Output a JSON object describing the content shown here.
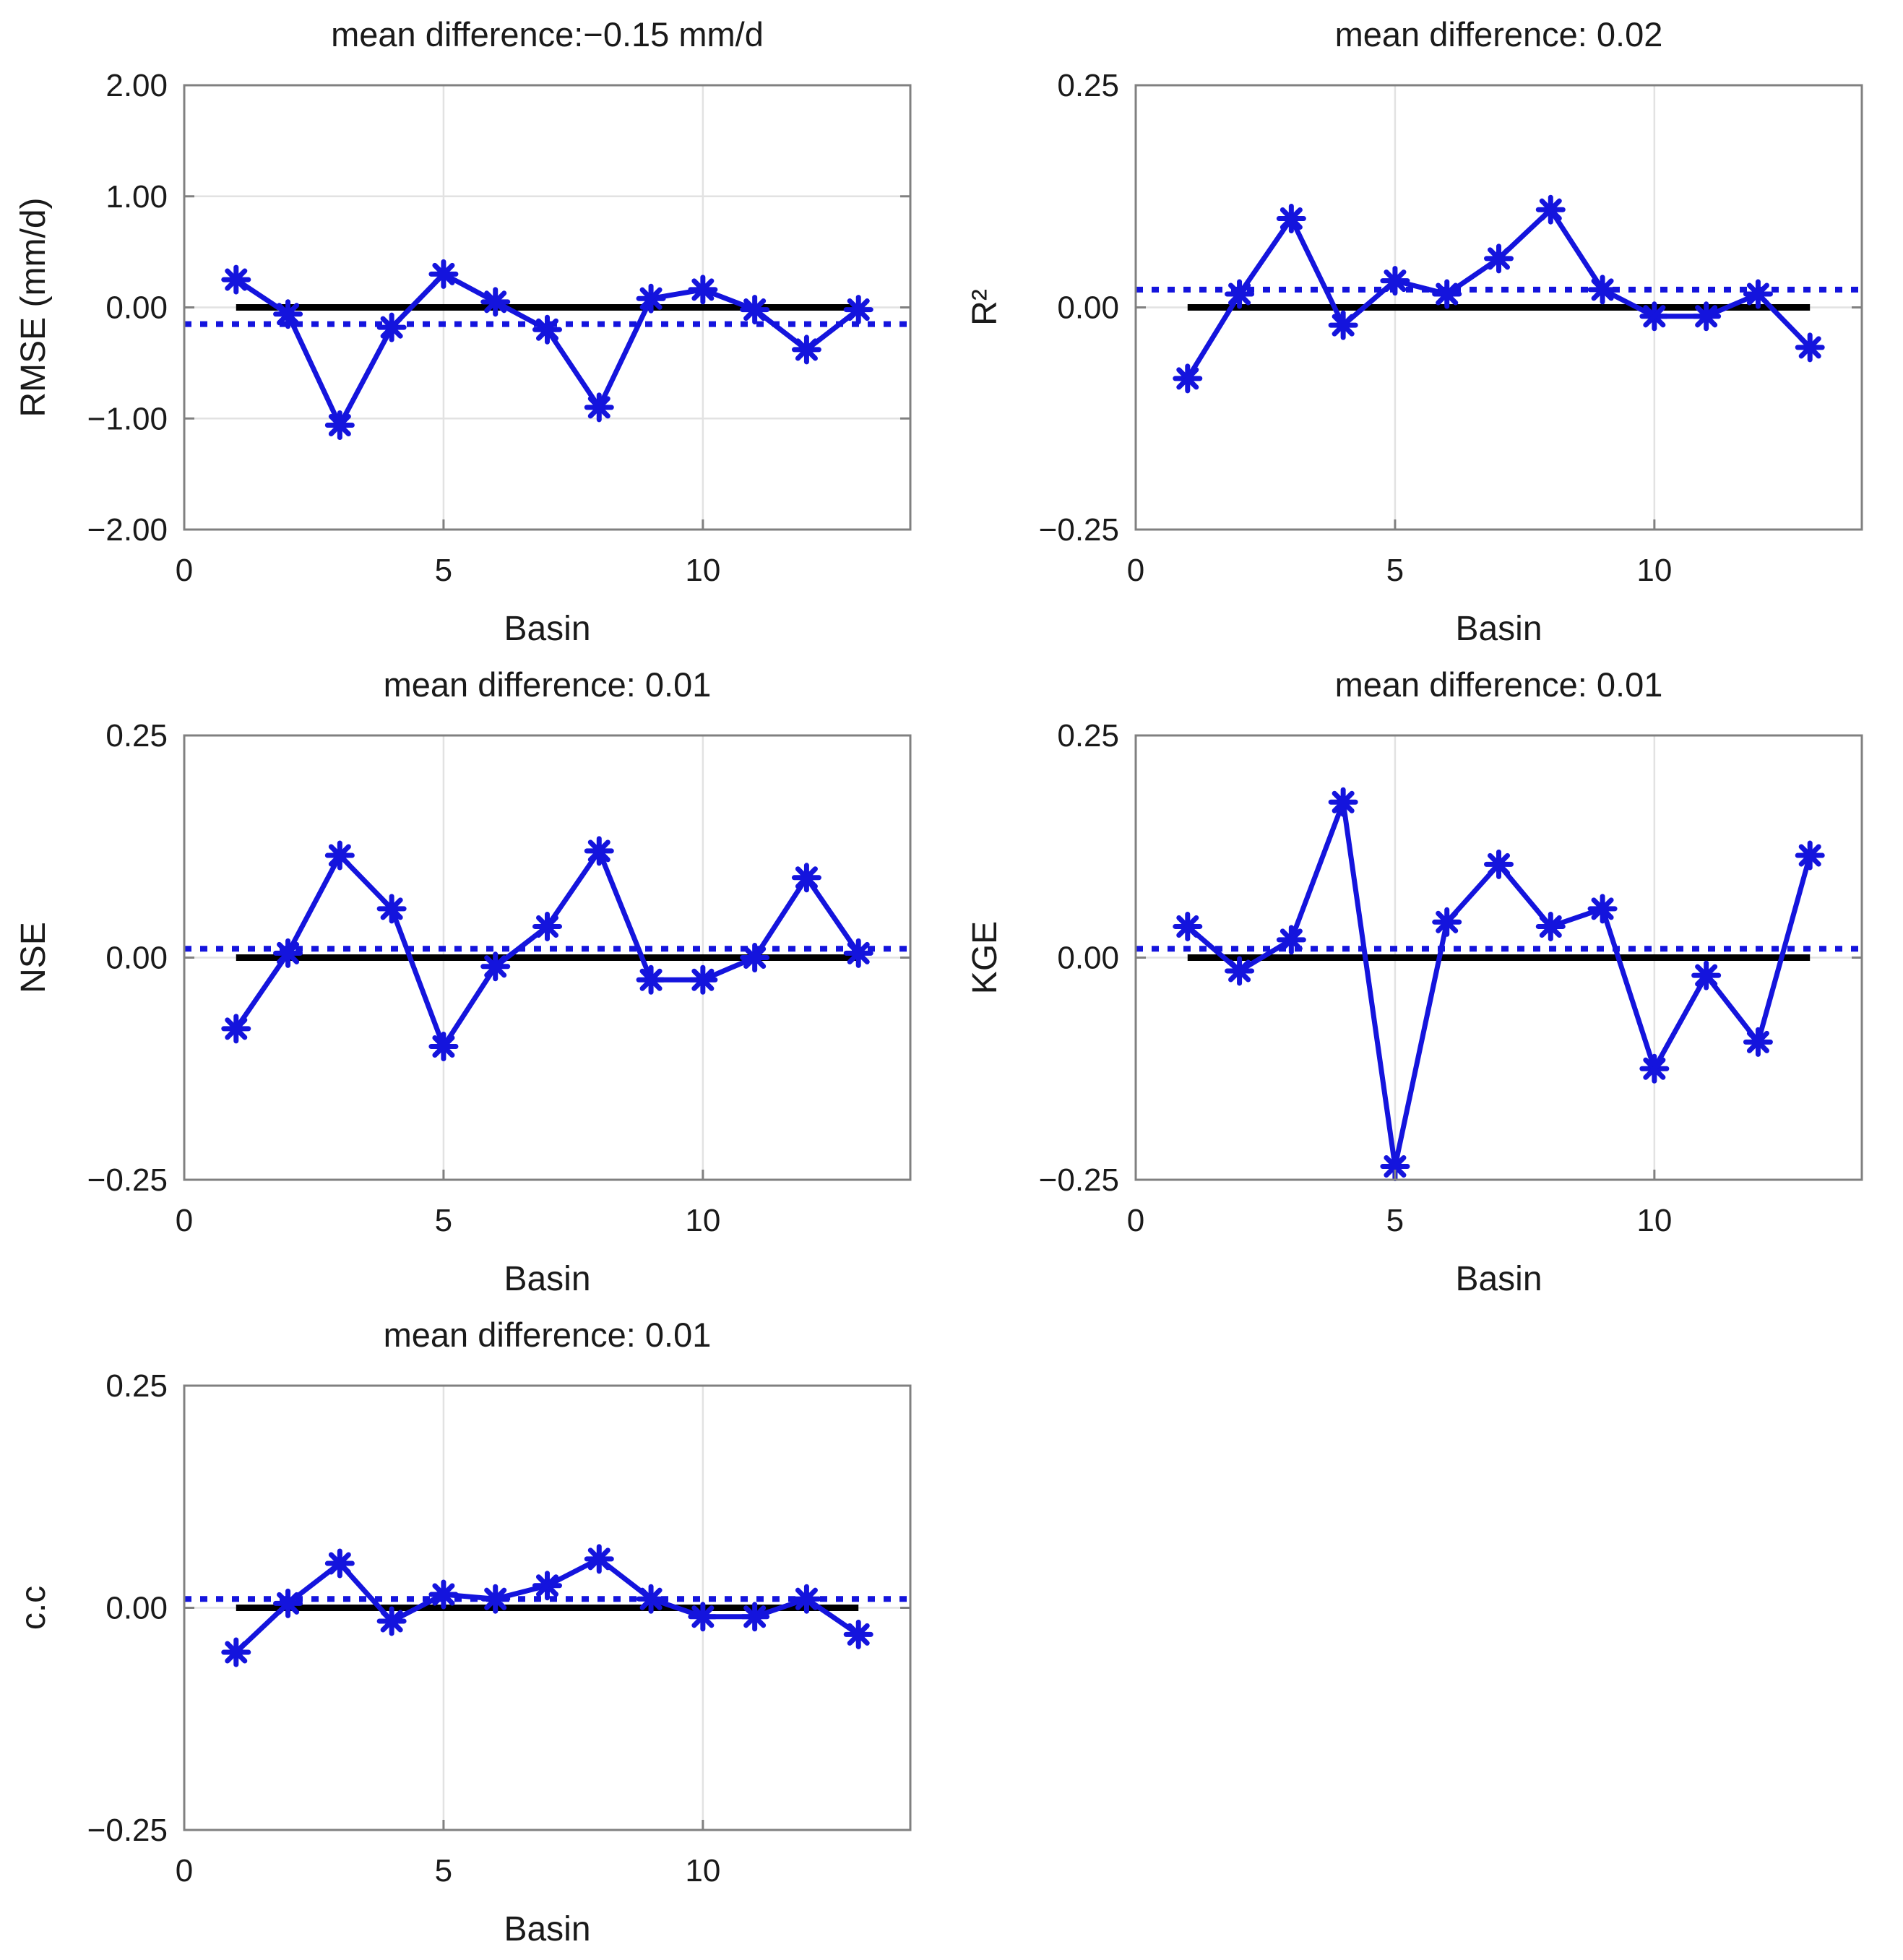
{
  "figure": {
    "background": "#ffffff",
    "colors": {
      "series_blue": "#1414dd",
      "mean_line_blue": "#1414dd",
      "zero_line_black": "#000000",
      "grid_gray": "#e2e2e2",
      "axis_box_gray": "#808080",
      "text_dark": "#1a1a1a"
    },
    "marker_style": "asterisk"
  },
  "chart_data": [
    {
      "type": "line",
      "id": "rmse-difference",
      "title": "mean difference:−0.15 mm/d",
      "ylabel": "RMSE (mm/d)",
      "xlabel": "Basin",
      "x": [
        1,
        2,
        3,
        4,
        5,
        6,
        7,
        8,
        9,
        10,
        11,
        12,
        13
      ],
      "values": [
        0.25,
        -0.06,
        -1.06,
        -0.18,
        0.3,
        0.05,
        -0.2,
        -0.9,
        0.08,
        0.16,
        -0.02,
        -0.38,
        -0.02
      ],
      "mean_difference": -0.15,
      "zero_line_value": 0,
      "zero_line_span": [
        1,
        13
      ],
      "ylim": [
        -2,
        2
      ],
      "yticks": [
        {
          "value": 2,
          "label": "2.00"
        },
        {
          "value": 1,
          "label": "1.00"
        },
        {
          "value": 0,
          "label": "0.00"
        },
        {
          "value": -1,
          "label": "−1.00"
        },
        {
          "value": -2,
          "label": "−2.00"
        }
      ],
      "xlim": [
        0,
        14
      ],
      "xticks": [
        {
          "value": 0,
          "label": "0"
        },
        {
          "value": 5,
          "label": "5"
        },
        {
          "value": 10,
          "label": "10"
        }
      ],
      "grid": true,
      "legend": null
    },
    {
      "type": "line",
      "id": "r2-difference",
      "title": "mean difference: 0.02",
      "ylabel": "R²",
      "xlabel": "Basin",
      "x": [
        1,
        2,
        3,
        4,
        5,
        6,
        7,
        8,
        9,
        10,
        11,
        12,
        13
      ],
      "values": [
        -0.08,
        0.015,
        0.1,
        -0.02,
        0.03,
        0.015,
        0.055,
        0.11,
        0.02,
        -0.01,
        -0.01,
        0.015,
        -0.045
      ],
      "mean_difference": 0.02,
      "zero_line_value": 0,
      "zero_line_span": [
        1,
        13
      ],
      "ylim": [
        -0.25,
        0.25
      ],
      "yticks": [
        {
          "value": 0.25,
          "label": "0.25"
        },
        {
          "value": 0,
          "label": "0.00"
        },
        {
          "value": -0.25,
          "label": "−0.25"
        }
      ],
      "xlim": [
        0,
        14
      ],
      "xticks": [
        {
          "value": 0,
          "label": "0"
        },
        {
          "value": 5,
          "label": "5"
        },
        {
          "value": 10,
          "label": "10"
        }
      ],
      "grid": true,
      "legend": null
    },
    {
      "type": "line",
      "id": "nse-difference",
      "title": "mean difference: 0.01",
      "ylabel": "NSE",
      "xlabel": "Basin",
      "x": [
        1,
        2,
        3,
        4,
        5,
        6,
        7,
        8,
        9,
        10,
        11,
        12,
        13
      ],
      "values": [
        -0.08,
        0.005,
        0.115,
        0.055,
        -0.1,
        -0.01,
        0.035,
        0.12,
        -0.025,
        -0.025,
        0.0,
        0.09,
        0.005
      ],
      "mean_difference": 0.01,
      "zero_line_value": 0,
      "zero_line_span": [
        1,
        13
      ],
      "ylim": [
        -0.25,
        0.25
      ],
      "yticks": [
        {
          "value": 0.25,
          "label": "0.25"
        },
        {
          "value": 0,
          "label": "0.00"
        },
        {
          "value": -0.25,
          "label": "−0.25"
        }
      ],
      "xlim": [
        0,
        14
      ],
      "xticks": [
        {
          "value": 0,
          "label": "0"
        },
        {
          "value": 5,
          "label": "5"
        },
        {
          "value": 10,
          "label": "10"
        }
      ],
      "grid": true,
      "legend": null
    },
    {
      "type": "line",
      "id": "kge-difference",
      "title": "mean difference: 0.01",
      "ylabel": "KGE",
      "xlabel": "Basin",
      "x": [
        1,
        2,
        3,
        4,
        5,
        6,
        7,
        8,
        9,
        10,
        11,
        12,
        13
      ],
      "values": [
        0.035,
        -0.015,
        0.02,
        0.175,
        -0.235,
        0.04,
        0.105,
        0.035,
        0.055,
        -0.125,
        -0.02,
        -0.095,
        0.115
      ],
      "mean_difference": 0.01,
      "zero_line_value": 0,
      "zero_line_span": [
        1,
        13
      ],
      "ylim": [
        -0.25,
        0.25
      ],
      "yticks": [
        {
          "value": 0.25,
          "label": "0.25"
        },
        {
          "value": 0,
          "label": "0.00"
        },
        {
          "value": -0.25,
          "label": "−0.25"
        }
      ],
      "xlim": [
        0,
        14
      ],
      "xticks": [
        {
          "value": 0,
          "label": "0"
        },
        {
          "value": 5,
          "label": "5"
        },
        {
          "value": 10,
          "label": "10"
        }
      ],
      "grid": true,
      "legend": null
    },
    {
      "type": "line",
      "id": "cc-difference",
      "title": "mean difference: 0.01",
      "ylabel": "c.c",
      "xlabel": "Basin",
      "x": [
        1,
        2,
        3,
        4,
        5,
        6,
        7,
        8,
        9,
        10,
        11,
        12,
        13
      ],
      "values": [
        -0.05,
        0.005,
        0.05,
        -0.015,
        0.015,
        0.01,
        0.025,
        0.055,
        0.01,
        -0.01,
        -0.01,
        0.01,
        -0.03
      ],
      "mean_difference": 0.01,
      "zero_line_value": 0,
      "zero_line_span": [
        1,
        13
      ],
      "ylim": [
        -0.25,
        0.25
      ],
      "yticks": [
        {
          "value": 0.25,
          "label": "0.25"
        },
        {
          "value": 0,
          "label": "0.00"
        },
        {
          "value": -0.25,
          "label": "−0.25"
        }
      ],
      "xlim": [
        0,
        14
      ],
      "xticks": [
        {
          "value": 0,
          "label": "0"
        },
        {
          "value": 5,
          "label": "5"
        },
        {
          "value": 10,
          "label": "10"
        }
      ],
      "grid": true,
      "legend": null
    }
  ]
}
